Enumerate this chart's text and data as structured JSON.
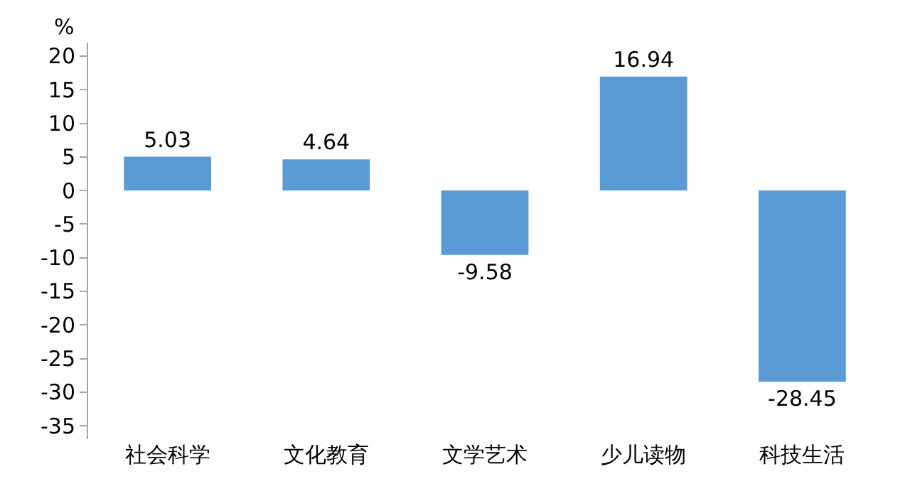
{
  "chart_data": {
    "type": "bar",
    "categories": [
      "社会科学",
      "文化教育",
      "文学艺术",
      "少儿读物",
      "科技生活"
    ],
    "values": [
      5.03,
      4.64,
      -9.58,
      16.94,
      -28.45
    ],
    "color": "#5b9bd5",
    "ylabel": "%",
    "ylim": [
      -37,
      22
    ],
    "yticks": [
      20,
      15,
      10,
      5,
      0,
      -5,
      -10,
      -15,
      -20,
      -25,
      -30,
      -35
    ],
    "data_labels": true
  }
}
